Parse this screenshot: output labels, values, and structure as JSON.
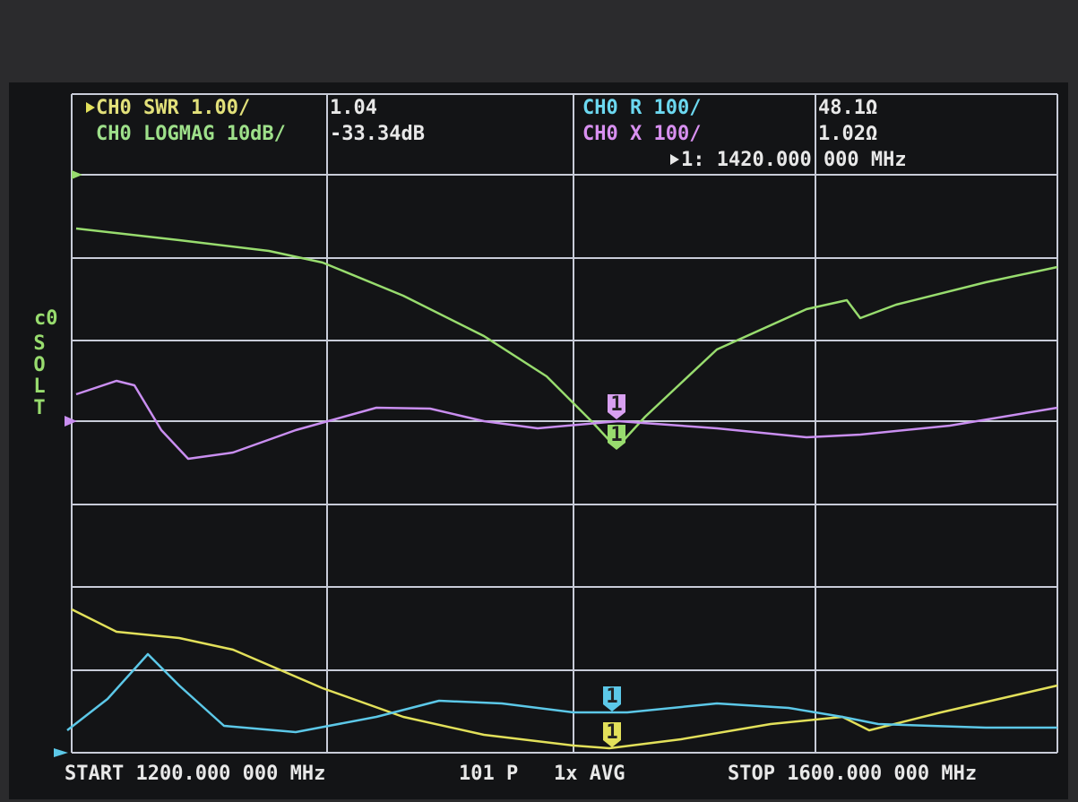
{
  "header": {
    "swr_label": "CH0 SWR 1.00/",
    "swr_value": "1.04",
    "logmag_label": "CH0 LOGMAG 10dB/",
    "logmag_value": "-33.34dB",
    "r_label": "CH0 R 100/",
    "r_value": "48.1Ω",
    "x_label": "CH0 X 100/",
    "x_value": "1.02Ω",
    "marker": "1: 1420.000 000 MHz"
  },
  "side": {
    "channel": "c0",
    "calibration": [
      "S",
      "O",
      "L",
      "T"
    ]
  },
  "markers": [
    "1",
    "1",
    "1",
    "1"
  ],
  "footer": {
    "start": "START 1200.000 000 MHz",
    "points": "101 P",
    "average": "1x AVG",
    "stop": "STOP 1600.000 000 MHz"
  }
}
